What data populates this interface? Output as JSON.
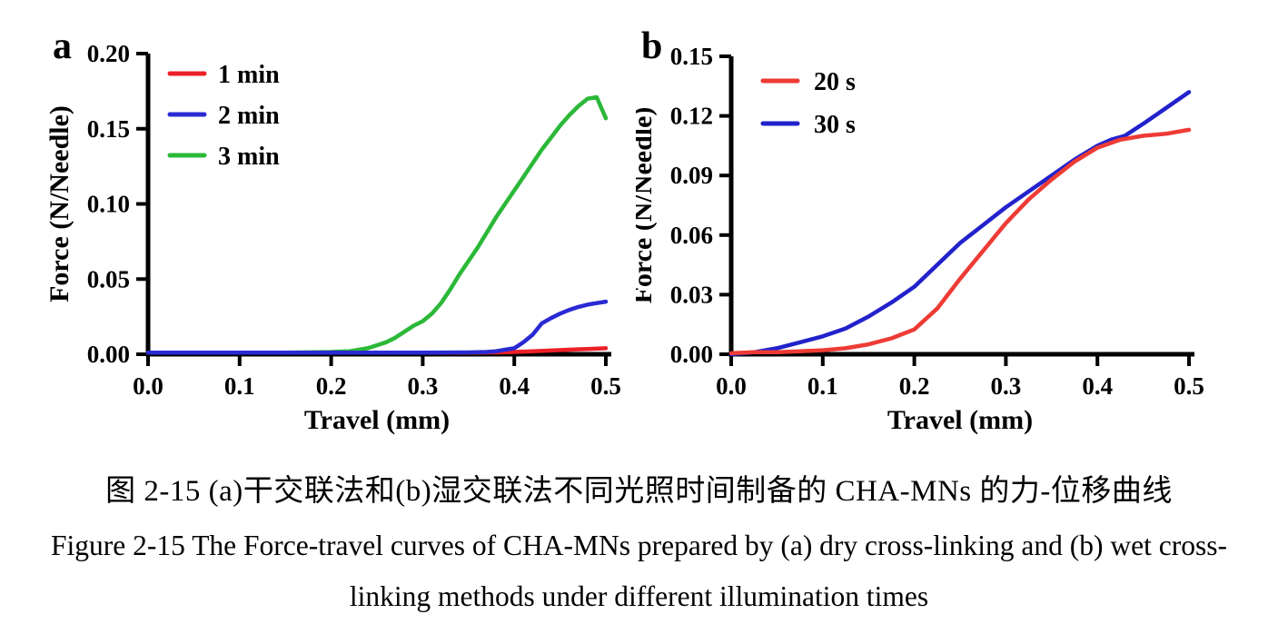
{
  "figure": {
    "caption_zh": "图 2-15 (a)干交联法和(b)湿交联法不同光照时间制备的 CHA-MNs 的力-位移曲线",
    "caption_en_line1": "Figure 2-15 The Force-travel curves of CHA-MNs prepared by (a) dry cross-linking and (b) wet cross-",
    "caption_en_line2": "linking methods under different illumination times"
  },
  "chart_data": [
    {
      "type": "line",
      "panel_label": "a",
      "xlabel": "Travel (mm)",
      "ylabel": "Force (N/Needle)",
      "xlim": [
        0,
        0.5
      ],
      "ylim": [
        0,
        0.2
      ],
      "xticks": [
        0,
        0.1,
        0.2,
        0.3,
        0.4,
        0.5
      ],
      "xtick_labels": [
        "0.0",
        "0.1",
        "0.2",
        "0.3",
        "0.4",
        "0.5"
      ],
      "yticks": [
        0,
        0.05,
        0.1,
        0.15,
        0.2
      ],
      "ytick_labels": [
        "0.00",
        "0.05",
        "0.10",
        "0.15",
        "0.20"
      ],
      "grid": false,
      "legend_position": "upper-left-inside",
      "axis_color": "#000000",
      "series": [
        {
          "name": "1 min",
          "color": "#ec2028",
          "x": [
            0,
            0.05,
            0.1,
            0.15,
            0.2,
            0.25,
            0.3,
            0.35,
            0.38,
            0.4,
            0.42,
            0.44,
            0.46,
            0.48,
            0.5
          ],
          "y": [
            0.001,
            0.001,
            0.001,
            0.001,
            0.001,
            0.001,
            0.001,
            0.001,
            0.0012,
            0.0015,
            0.002,
            0.0025,
            0.003,
            0.0035,
            0.004
          ]
        },
        {
          "name": "2 min",
          "color": "#2a2ad4",
          "x": [
            0,
            0.05,
            0.1,
            0.15,
            0.2,
            0.25,
            0.3,
            0.35,
            0.37,
            0.38,
            0.39,
            0.4,
            0.41,
            0.42,
            0.43,
            0.44,
            0.45,
            0.46,
            0.47,
            0.48,
            0.49,
            0.5
          ],
          "y": [
            0.001,
            0.001,
            0.001,
            0.001,
            0.001,
            0.001,
            0.001,
            0.0012,
            0.0015,
            0.002,
            0.003,
            0.004,
            0.008,
            0.013,
            0.0205,
            0.024,
            0.027,
            0.0295,
            0.0315,
            0.033,
            0.034,
            0.035
          ]
        },
        {
          "name": "3 min",
          "color": "#2cb838",
          "x": [
            0,
            0.05,
            0.1,
            0.15,
            0.2,
            0.22,
            0.24,
            0.26,
            0.27,
            0.28,
            0.29,
            0.3,
            0.31,
            0.32,
            0.33,
            0.34,
            0.35,
            0.36,
            0.37,
            0.38,
            0.39,
            0.4,
            0.41,
            0.42,
            0.43,
            0.44,
            0.45,
            0.46,
            0.47,
            0.48,
            0.49,
            0.5
          ],
          "y": [
            0.001,
            0.001,
            0.001,
            0.001,
            0.0015,
            0.002,
            0.004,
            0.008,
            0.011,
            0.015,
            0.019,
            0.022,
            0.027,
            0.034,
            0.043,
            0.053,
            0.062,
            0.071,
            0.081,
            0.091,
            0.1,
            0.109,
            0.118,
            0.127,
            0.136,
            0.144,
            0.152,
            0.159,
            0.165,
            0.17,
            0.171,
            0.157
          ]
        }
      ]
    },
    {
      "type": "line",
      "panel_label": "b",
      "xlabel": "Travel (mm)",
      "ylabel": "Force (N/Needle)",
      "xlim": [
        0,
        0.5
      ],
      "ylim": [
        0,
        0.15
      ],
      "xticks": [
        0,
        0.1,
        0.2,
        0.3,
        0.4,
        0.5
      ],
      "xtick_labels": [
        "0.0",
        "0.1",
        "0.2",
        "0.3",
        "0.4",
        "0.5"
      ],
      "yticks": [
        0,
        0.03,
        0.06,
        0.09,
        0.12,
        0.15
      ],
      "ytick_labels": [
        "0.00",
        "0.03",
        "0.06",
        "0.09",
        "0.12",
        "0.15"
      ],
      "grid": false,
      "legend_position": "upper-left-inside",
      "axis_color": "#000000",
      "series": [
        {
          "name": "20 s",
          "color": "#ee3b35",
          "x": [
            0,
            0.025,
            0.05,
            0.075,
            0.1,
            0.125,
            0.15,
            0.175,
            0.2,
            0.225,
            0.25,
            0.275,
            0.3,
            0.325,
            0.35,
            0.375,
            0.4,
            0.425,
            0.45,
            0.475,
            0.5
          ],
          "y": [
            0.0005,
            0.001,
            0.001,
            0.0015,
            0.002,
            0.003,
            0.005,
            0.008,
            0.0125,
            0.023,
            0.038,
            0.052,
            0.066,
            0.078,
            0.088,
            0.097,
            0.104,
            0.108,
            0.11,
            0.111,
            0.113
          ]
        },
        {
          "name": "30 s",
          "color": "#2222cc",
          "x": [
            0,
            0.025,
            0.05,
            0.075,
            0.1,
            0.125,
            0.15,
            0.175,
            0.2,
            0.225,
            0.25,
            0.275,
            0.3,
            0.325,
            0.35,
            0.375,
            0.4,
            0.415,
            0.43,
            0.45,
            0.475,
            0.5
          ],
          "y": [
            0.0,
            0.001,
            0.003,
            0.006,
            0.009,
            0.013,
            0.019,
            0.026,
            0.034,
            0.045,
            0.056,
            0.065,
            0.074,
            0.082,
            0.09,
            0.098,
            0.105,
            0.108,
            0.11,
            0.116,
            0.124,
            0.132
          ]
        }
      ]
    }
  ]
}
